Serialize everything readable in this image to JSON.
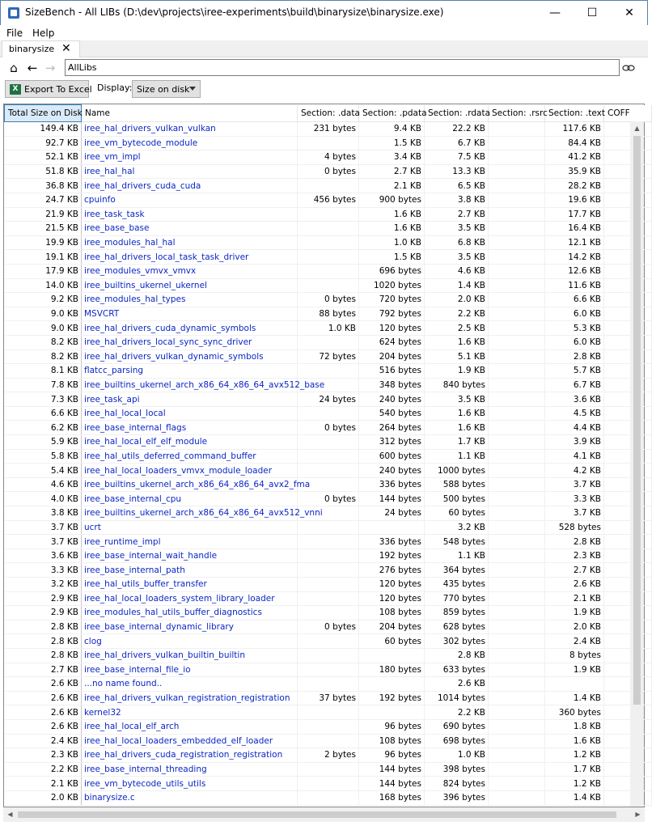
{
  "window": {
    "title": "SizeBench - All LIBs (D:\\dev\\projects\\iree-experiments\\build\\binarysize\\binarysize.exe)"
  },
  "menu": {
    "file": "File",
    "help": "Help"
  },
  "tab": {
    "label": "binarysize",
    "close": "✕"
  },
  "nav": {
    "address": "AllLibs"
  },
  "toolbar": {
    "export_label": "Export To Excel",
    "display_label": "Display:",
    "display_value": "Size on disk"
  },
  "table": {
    "columns": [
      "Total Size on Disk",
      "Name",
      "Section: .data",
      "Section: .pdata",
      "Section: .rdata",
      "Section: .rsrc",
      "Section: .text",
      "COFF"
    ],
    "rows": [
      [
        "149.4 KB",
        "iree_hal_drivers_vulkan_vulkan",
        "231 bytes",
        "9.4 KB",
        "22.2 KB",
        "",
        "117.6 KB",
        ""
      ],
      [
        "92.7 KB",
        "iree_vm_bytecode_module",
        "",
        "1.5 KB",
        "6.7 KB",
        "",
        "84.4 KB",
        ""
      ],
      [
        "52.1 KB",
        "iree_vm_impl",
        "4 bytes",
        "3.4 KB",
        "7.5 KB",
        "",
        "41.2 KB",
        ""
      ],
      [
        "51.8 KB",
        "iree_hal_hal",
        "0 bytes",
        "2.7 KB",
        "13.3 KB",
        "",
        "35.9 KB",
        ""
      ],
      [
        "36.8 KB",
        "iree_hal_drivers_cuda_cuda",
        "",
        "2.1 KB",
        "6.5 KB",
        "",
        "28.2 KB",
        ""
      ],
      [
        "24.7 KB",
        "cpuinfo",
        "456 bytes",
        "900 bytes",
        "3.8 KB",
        "",
        "19.6 KB",
        ""
      ],
      [
        "21.9 KB",
        "iree_task_task",
        "",
        "1.6 KB",
        "2.7 KB",
        "",
        "17.7 KB",
        ""
      ],
      [
        "21.5 KB",
        "iree_base_base",
        "",
        "1.6 KB",
        "3.5 KB",
        "",
        "16.4 KB",
        ""
      ],
      [
        "19.9 KB",
        "iree_modules_hal_hal",
        "",
        "1.0 KB",
        "6.8 KB",
        "",
        "12.1 KB",
        ""
      ],
      [
        "19.1 KB",
        "iree_hal_drivers_local_task_task_driver",
        "",
        "1.5 KB",
        "3.5 KB",
        "",
        "14.2 KB",
        ""
      ],
      [
        "17.9 KB",
        "iree_modules_vmvx_vmvx",
        "",
        "696 bytes",
        "4.6 KB",
        "",
        "12.6 KB",
        ""
      ],
      [
        "14.0 KB",
        "iree_builtins_ukernel_ukernel",
        "",
        "1020 bytes",
        "1.4 KB",
        "",
        "11.6 KB",
        ""
      ],
      [
        "9.2 KB",
        "iree_modules_hal_types",
        "0 bytes",
        "720 bytes",
        "2.0 KB",
        "",
        "6.6 KB",
        ""
      ],
      [
        "9.0 KB",
        "MSVCRT",
        "88 bytes",
        "792 bytes",
        "2.2 KB",
        "",
        "6.0 KB",
        ""
      ],
      [
        "9.0 KB",
        "iree_hal_drivers_cuda_dynamic_symbols",
        "1.0 KB",
        "120 bytes",
        "2.5 KB",
        "",
        "5.3 KB",
        ""
      ],
      [
        "8.2 KB",
        "iree_hal_drivers_local_sync_sync_driver",
        "",
        "624 bytes",
        "1.6 KB",
        "",
        "6.0 KB",
        ""
      ],
      [
        "8.2 KB",
        "iree_hal_drivers_vulkan_dynamic_symbols",
        "72 bytes",
        "204 bytes",
        "5.1 KB",
        "",
        "2.8 KB",
        ""
      ],
      [
        "8.1 KB",
        "flatcc_parsing",
        "",
        "516 bytes",
        "1.9 KB",
        "",
        "5.7 KB",
        ""
      ],
      [
        "7.8 KB",
        "iree_builtins_ukernel_arch_x86_64_x86_64_avx512_base",
        "",
        "348 bytes",
        "840 bytes",
        "",
        "6.7 KB",
        ""
      ],
      [
        "7.3 KB",
        "iree_task_api",
        "24 bytes",
        "240 bytes",
        "3.5 KB",
        "",
        "3.6 KB",
        ""
      ],
      [
        "6.6 KB",
        "iree_hal_local_local",
        "",
        "540 bytes",
        "1.6 KB",
        "",
        "4.5 KB",
        ""
      ],
      [
        "6.2 KB",
        "iree_base_internal_flags",
        "0 bytes",
        "264 bytes",
        "1.6 KB",
        "",
        "4.4 KB",
        ""
      ],
      [
        "5.9 KB",
        "iree_hal_local_elf_elf_module",
        "",
        "312 bytes",
        "1.7 KB",
        "",
        "3.9 KB",
        ""
      ],
      [
        "5.8 KB",
        "iree_hal_utils_deferred_command_buffer",
        "",
        "600 bytes",
        "1.1 KB",
        "",
        "4.1 KB",
        ""
      ],
      [
        "5.4 KB",
        "iree_hal_local_loaders_vmvx_module_loader",
        "",
        "240 bytes",
        "1000 bytes",
        "",
        "4.2 KB",
        ""
      ],
      [
        "4.6 KB",
        "iree_builtins_ukernel_arch_x86_64_x86_64_avx2_fma",
        "",
        "336 bytes",
        "588 bytes",
        "",
        "3.7 KB",
        ""
      ],
      [
        "4.0 KB",
        "iree_base_internal_cpu",
        "0 bytes",
        "144 bytes",
        "500 bytes",
        "",
        "3.3 KB",
        ""
      ],
      [
        "3.8 KB",
        "iree_builtins_ukernel_arch_x86_64_x86_64_avx512_vnni",
        "",
        "24 bytes",
        "60 bytes",
        "",
        "3.7 KB",
        ""
      ],
      [
        "3.7 KB",
        "ucrt",
        "",
        "",
        "3.2 KB",
        "",
        "528 bytes",
        ""
      ],
      [
        "3.7 KB",
        "iree_runtime_impl",
        "",
        "336 bytes",
        "548 bytes",
        "",
        "2.8 KB",
        ""
      ],
      [
        "3.6 KB",
        "iree_base_internal_wait_handle",
        "",
        "192 bytes",
        "1.1 KB",
        "",
        "2.3 KB",
        ""
      ],
      [
        "3.3 KB",
        "iree_base_internal_path",
        "",
        "276 bytes",
        "364 bytes",
        "",
        "2.7 KB",
        ""
      ],
      [
        "3.2 KB",
        "iree_hal_utils_buffer_transfer",
        "",
        "120 bytes",
        "435 bytes",
        "",
        "2.6 KB",
        ""
      ],
      [
        "2.9 KB",
        "iree_hal_local_loaders_system_library_loader",
        "",
        "120 bytes",
        "770 bytes",
        "",
        "2.1 KB",
        ""
      ],
      [
        "2.9 KB",
        "iree_modules_hal_utils_buffer_diagnostics",
        "",
        "108 bytes",
        "859 bytes",
        "",
        "1.9 KB",
        ""
      ],
      [
        "2.8 KB",
        "iree_base_internal_dynamic_library",
        "0 bytes",
        "204 bytes",
        "628 bytes",
        "",
        "2.0 KB",
        ""
      ],
      [
        "2.8 KB",
        "clog",
        "",
        "60 bytes",
        "302 bytes",
        "",
        "2.4 KB",
        ""
      ],
      [
        "2.8 KB",
        "iree_hal_drivers_vulkan_builtin_builtin",
        "",
        "",
        "2.8 KB",
        "",
        "8 bytes",
        ""
      ],
      [
        "2.7 KB",
        "iree_base_internal_file_io",
        "",
        "180 bytes",
        "633 bytes",
        "",
        "1.9 KB",
        ""
      ],
      [
        "2.6 KB",
        "...no name found..",
        "",
        "",
        "2.6 KB",
        "",
        "",
        ""
      ],
      [
        "2.6 KB",
        "iree_hal_drivers_vulkan_registration_registration",
        "37 bytes",
        "192 bytes",
        "1014 bytes",
        "",
        "1.4 KB",
        ""
      ],
      [
        "2.6 KB",
        "kernel32",
        "",
        "",
        "2.2 KB",
        "",
        "360 bytes",
        ""
      ],
      [
        "2.6 KB",
        "iree_hal_local_elf_arch",
        "",
        "96 bytes",
        "690 bytes",
        "",
        "1.8 KB",
        ""
      ],
      [
        "2.4 KB",
        "iree_hal_local_loaders_embedded_elf_loader",
        "",
        "108 bytes",
        "698 bytes",
        "",
        "1.6 KB",
        ""
      ],
      [
        "2.3 KB",
        "iree_hal_drivers_cuda_registration_registration",
        "2 bytes",
        "96 bytes",
        "1.0 KB",
        "",
        "1.2 KB",
        ""
      ],
      [
        "2.2 KB",
        "iree_base_internal_threading",
        "",
        "144 bytes",
        "398 bytes",
        "",
        "1.7 KB",
        ""
      ],
      [
        "2.1 KB",
        "iree_vm_bytecode_utils_utils",
        "",
        "144 bytes",
        "824 bytes",
        "",
        "1.2 KB",
        ""
      ],
      [
        "2.0 KB",
        "binarysize.c",
        "",
        "168 bytes",
        "396 bytes",
        "",
        "1.4 KB",
        ""
      ]
    ]
  }
}
